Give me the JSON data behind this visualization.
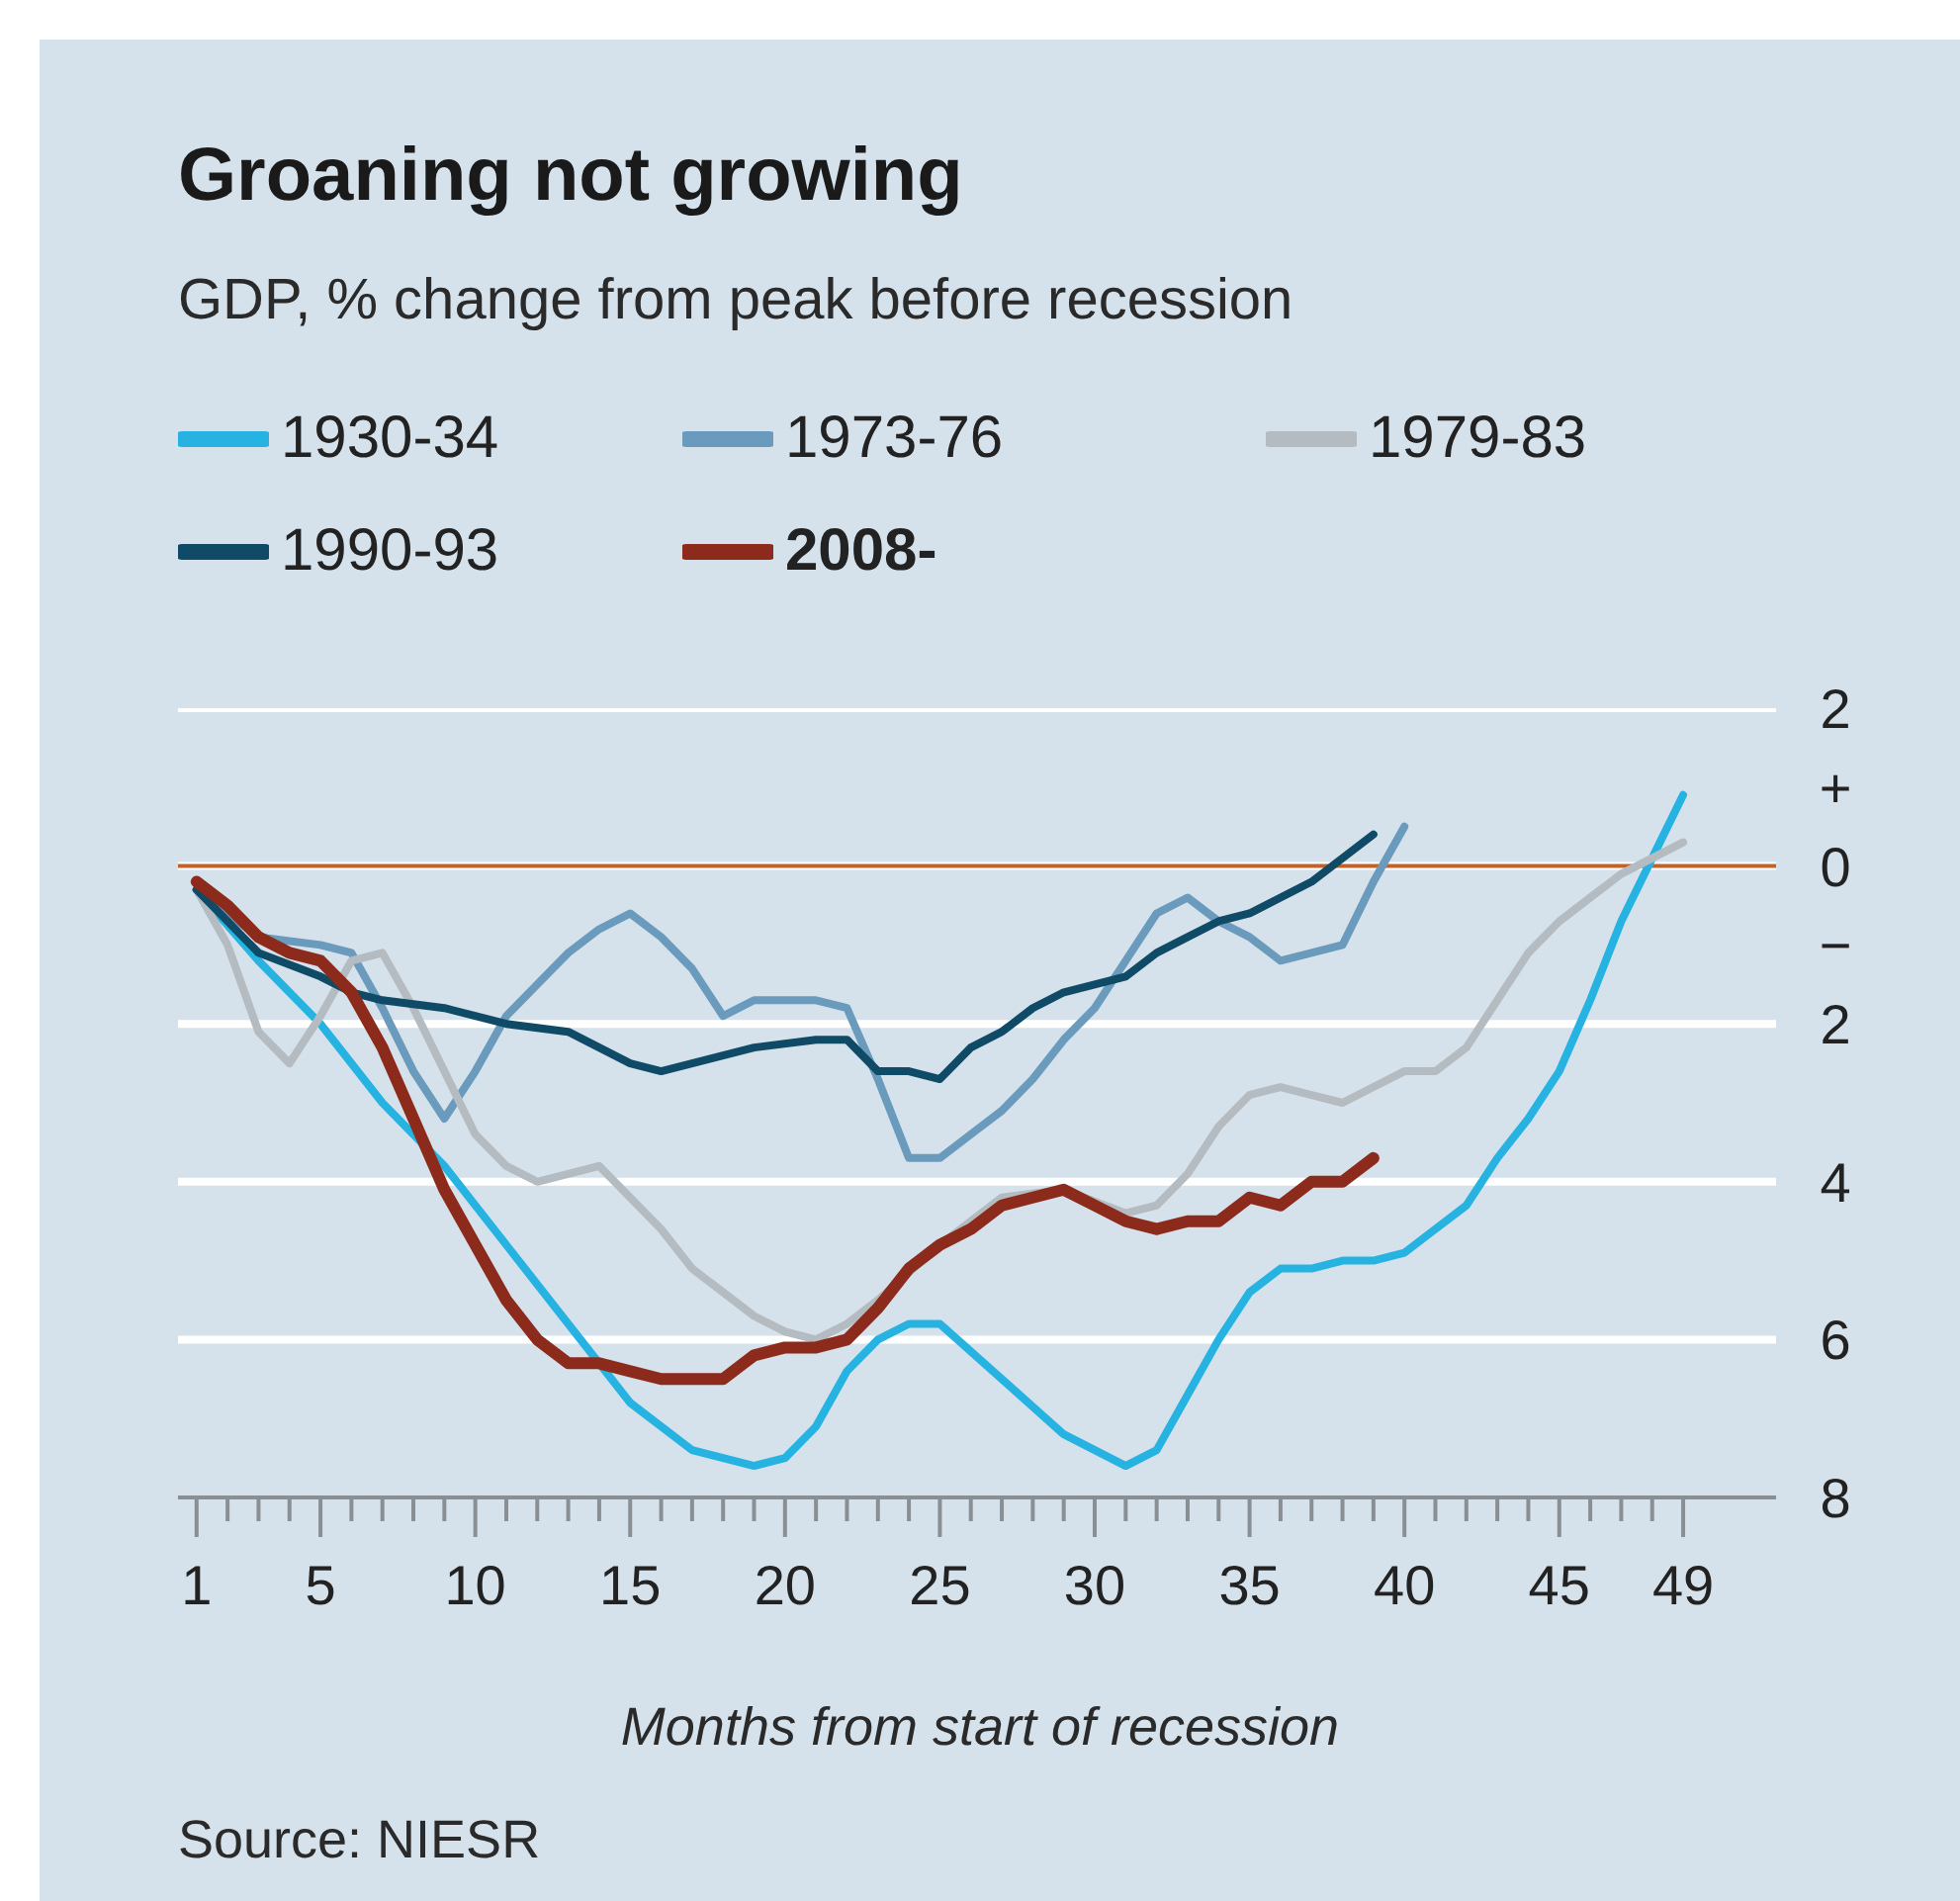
{
  "chart_data": {
    "type": "line",
    "title": "Groaning not growing",
    "subtitle": "GDP, % change from peak before recession",
    "xlabel": "Months from start of recession",
    "annotations": [
      "Source: NIESR"
    ],
    "xlim": [
      0.4,
      52
    ],
    "xticks": [
      1,
      {
        "value": 2,
        "label": null
      },
      {
        "value": 3,
        "label": null
      },
      {
        "value": 4,
        "label": null
      },
      5,
      {
        "value": 6,
        "label": null
      },
      {
        "value": 7,
        "label": null
      },
      {
        "value": 8,
        "label": null
      },
      {
        "value": 9,
        "label": null
      },
      10,
      {
        "value": 11,
        "label": null
      },
      {
        "value": 12,
        "label": null
      },
      {
        "value": 13,
        "label": null
      },
      {
        "value": 14,
        "label": null
      },
      15,
      {
        "value": 16,
        "label": null
      },
      {
        "value": 17,
        "label": null
      },
      {
        "value": 18,
        "label": null
      },
      {
        "value": 19,
        "label": null
      },
      20,
      {
        "value": 21,
        "label": null
      },
      {
        "value": 22,
        "label": null
      },
      {
        "value": 23,
        "label": null
      },
      {
        "value": 24,
        "label": null
      },
      25,
      {
        "value": 26,
        "label": null
      },
      {
        "value": 27,
        "label": null
      },
      {
        "value": 28,
        "label": null
      },
      {
        "value": 29,
        "label": null
      },
      30,
      {
        "value": 31,
        "label": null
      },
      {
        "value": 32,
        "label": null
      },
      {
        "value": 33,
        "label": null
      },
      {
        "value": 34,
        "label": null
      },
      35,
      {
        "value": 36,
        "label": null
      },
      {
        "value": 37,
        "label": null
      },
      {
        "value": 38,
        "label": null
      },
      {
        "value": 39,
        "label": null
      },
      40,
      {
        "value": 41,
        "label": null
      },
      {
        "value": 42,
        "label": null
      },
      {
        "value": 43,
        "label": null
      },
      {
        "value": 44,
        "label": null
      },
      45,
      {
        "value": 46,
        "label": null
      },
      {
        "value": 47,
        "label": null
      },
      {
        "value": 48,
        "label": null
      },
      49
    ],
    "ylim": [
      -8,
      2
    ],
    "yticks": [
      {
        "value": -8,
        "label": "8"
      },
      {
        "value": -6,
        "label": "6"
      },
      {
        "value": -4,
        "label": "4"
      },
      {
        "value": -2,
        "label": "2"
      },
      {
        "value": -1,
        "label": "−"
      },
      0,
      {
        "value": 1,
        "label": "+"
      },
      2
    ],
    "grid": "y",
    "legend": "top",
    "ref_lines": [
      {
        "axis": "y",
        "value": 0,
        "color": "#c0622c"
      }
    ],
    "series": [
      {
        "name": "1930-34",
        "color": "#27b3e2",
        "x": [
          1,
          3,
          5,
          7,
          9,
          11,
          13,
          15,
          17,
          19,
          20,
          21,
          22,
          23,
          24,
          25,
          27,
          29,
          31,
          32,
          33,
          34,
          35,
          36,
          37,
          38,
          39,
          40,
          41,
          42,
          43,
          44,
          45,
          46,
          47,
          48,
          49
        ],
        "values": [
          -0.3,
          -1.2,
          -2.0,
          -3.0,
          -3.8,
          -4.8,
          -5.8,
          -6.8,
          -7.4,
          -7.6,
          -7.5,
          -7.1,
          -6.4,
          -6.0,
          -5.8,
          -5.8,
          -6.5,
          -7.2,
          -7.6,
          -7.4,
          -6.7,
          -6.0,
          -5.4,
          -5.1,
          -5.1,
          -5.0,
          -5.0,
          -4.9,
          -4.6,
          -4.3,
          -3.7,
          -3.2,
          -2.6,
          -1.7,
          -0.7,
          0.1,
          0.9
        ]
      },
      {
        "name": "1973-76",
        "color": "#6a9bbd",
        "x": [
          1,
          3,
          5,
          6,
          7,
          8,
          9,
          10,
          11,
          12,
          13,
          14,
          15,
          16,
          17,
          18,
          19,
          20,
          21,
          22,
          23,
          24,
          25,
          26,
          27,
          28,
          29,
          30,
          31,
          32,
          33,
          34,
          35,
          36,
          37,
          38,
          39,
          40
        ],
        "values": [
          -0.3,
          -0.9,
          -1.0,
          -1.1,
          -1.8,
          -2.6,
          -3.2,
          -2.6,
          -1.9,
          -1.5,
          -1.1,
          -0.8,
          -0.6,
          -0.9,
          -1.3,
          -1.9,
          -1.7,
          -1.7,
          -1.7,
          -1.8,
          -2.7,
          -3.7,
          -3.7,
          -3.4,
          -3.1,
          -2.7,
          -2.2,
          -1.8,
          -1.2,
          -0.6,
          -0.4,
          -0.7,
          -0.9,
          -1.2,
          -1.1,
          -1.0,
          -0.2,
          0.5
        ]
      },
      {
        "name": "1979-83",
        "color": "#b4bbc1",
        "x": [
          1,
          2,
          3,
          4,
          5,
          6,
          7,
          8,
          9,
          10,
          11,
          12,
          13,
          14,
          15,
          16,
          17,
          18,
          19,
          20,
          21,
          22,
          23,
          25,
          27,
          29,
          31,
          32,
          33,
          34,
          35,
          36,
          37,
          38,
          39,
          40,
          41,
          42,
          43,
          44,
          45,
          46,
          47,
          48,
          49
        ],
        "values": [
          -0.3,
          -1.0,
          -2.1,
          -2.5,
          -1.9,
          -1.2,
          -1.1,
          -1.8,
          -2.6,
          -3.4,
          -3.8,
          -4.0,
          -3.9,
          -3.8,
          -4.2,
          -4.6,
          -5.1,
          -5.4,
          -5.7,
          -5.9,
          -6.0,
          -5.8,
          -5.5,
          -4.8,
          -4.2,
          -4.1,
          -4.4,
          -4.3,
          -3.9,
          -3.3,
          -2.9,
          -2.8,
          -2.9,
          -3.0,
          -2.8,
          -2.6,
          -2.6,
          -2.3,
          -1.7,
          -1.1,
          -0.7,
          -0.4,
          -0.1,
          0.1,
          0.3
        ]
      },
      {
        "name": "1990-93",
        "color": "#0f4a66",
        "x": [
          1,
          3,
          5,
          6,
          7,
          9,
          11,
          13,
          15,
          16,
          17,
          19,
          21,
          22,
          23,
          24,
          25,
          26,
          27,
          28,
          29,
          30,
          31,
          32,
          33,
          34,
          35,
          36,
          37,
          38,
          39
        ],
        "values": [
          -0.3,
          -1.1,
          -1.4,
          -1.6,
          -1.7,
          -1.8,
          -2.0,
          -2.1,
          -2.5,
          -2.6,
          -2.5,
          -2.3,
          -2.2,
          -2.2,
          -2.6,
          -2.6,
          -2.7,
          -2.3,
          -2.1,
          -1.8,
          -1.6,
          -1.5,
          -1.4,
          -1.1,
          -0.9,
          -0.7,
          -0.6,
          -0.4,
          -0.2,
          0.1,
          0.4
        ]
      },
      {
        "name": "2008-",
        "color": "#8c2a1c",
        "x": [
          1,
          2,
          3,
          4,
          5,
          6,
          7,
          8,
          9,
          10,
          11,
          12,
          13,
          14,
          15,
          16,
          17,
          18,
          19,
          20,
          21,
          22,
          23,
          24,
          25,
          26,
          27,
          28,
          29,
          30,
          31,
          32,
          33,
          34,
          35,
          36,
          37,
          38,
          39
        ],
        "values": [
          -0.2,
          -0.5,
          -0.9,
          -1.1,
          -1.2,
          -1.6,
          -2.3,
          -3.2,
          -4.1,
          -4.8,
          -5.5,
          -6.0,
          -6.3,
          -6.3,
          -6.4,
          -6.5,
          -6.5,
          -6.5,
          -6.2,
          -6.1,
          -6.1,
          -6.0,
          -5.6,
          -5.1,
          -4.8,
          -4.6,
          -4.3,
          -4.2,
          -4.1,
          -4.3,
          -4.5,
          -4.6,
          -4.5,
          -4.5,
          -4.2,
          -4.3,
          -4.0,
          -4.0,
          -3.7
        ]
      }
    ]
  }
}
